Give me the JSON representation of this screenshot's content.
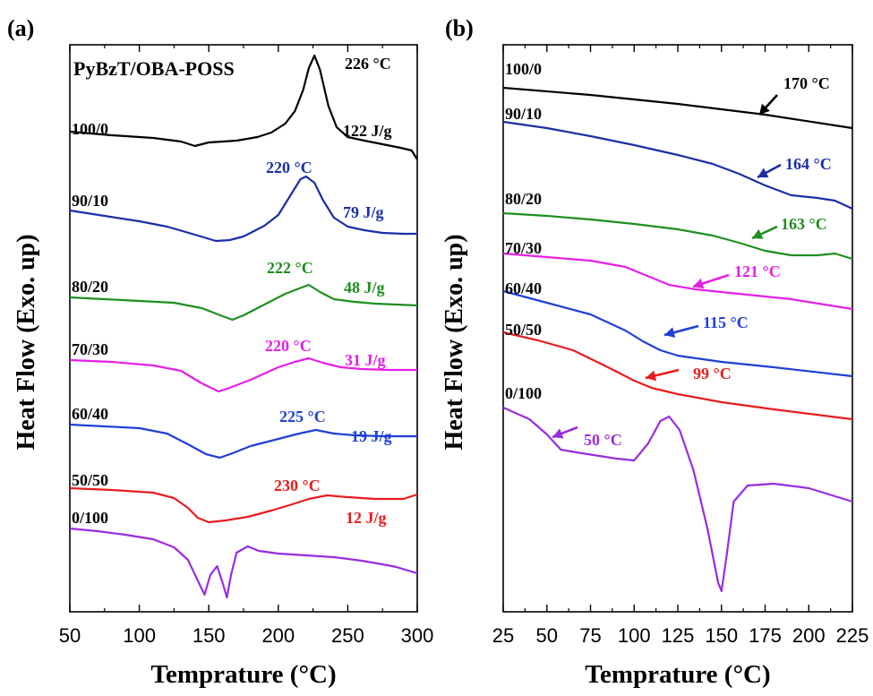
{
  "figure": {
    "panel_a_letter": "(a)",
    "panel_b_letter": "(b)"
  },
  "chart_data": [
    {
      "panel": "(a)",
      "type": "line",
      "title": "PyBzT/OBA-POSS",
      "xlabel": "Temprature (°C)",
      "ylabel": "Heat Flow (Exo. up)",
      "xlim": [
        50,
        300
      ],
      "xticks": [
        "50",
        "100",
        "150",
        "200",
        "250",
        "300"
      ],
      "grid": false,
      "series": [
        {
          "name": "100/0",
          "color": "#000000",
          "temp_label": "226 °C",
          "enthalpy_label": "122 J/g",
          "x": [
            50,
            80,
            110,
            130,
            140,
            150,
            170,
            185,
            195,
            205,
            212,
            218,
            222,
            226,
            230,
            236,
            242,
            250,
            262,
            275,
            288,
            296,
            300
          ],
          "y": [
            147,
            151,
            154,
            158,
            163,
            159,
            157,
            153,
            148,
            138,
            124,
            100,
            76,
            62,
            78,
            118,
            142,
            153,
            157,
            161,
            165,
            168,
            178
          ]
        },
        {
          "name": "90/10",
          "color": "#1c2ea8",
          "temp_label": "220 °C",
          "enthalpy_label": "79 J/g",
          "x": [
            50,
            75,
            100,
            120,
            140,
            155,
            165,
            175,
            190,
            200,
            210,
            216,
            220,
            226,
            232,
            240,
            250,
            262,
            275,
            290,
            300
          ],
          "y": [
            235,
            241,
            247,
            253,
            262,
            269,
            268,
            264,
            252,
            240,
            215,
            200,
            197,
            204,
            223,
            243,
            253,
            257,
            260,
            261,
            261
          ]
        },
        {
          "name": "80/20",
          "color": "#1f8e1f",
          "temp_label": "222 °C",
          "enthalpy_label": "48 J/g",
          "x": [
            50,
            75,
            100,
            125,
            145,
            160,
            167,
            175,
            190,
            205,
            215,
            222,
            230,
            240,
            255,
            270,
            285,
            300
          ],
          "y": [
            332,
            334,
            336,
            338,
            344,
            353,
            357,
            352,
            340,
            328,
            322,
            318,
            326,
            334,
            337,
            339,
            340,
            341
          ]
        },
        {
          "name": "70/30",
          "color": "#e61fe6",
          "temp_label": "220 °C",
          "enthalpy_label": "31 J/g",
          "x": [
            50,
            80,
            110,
            130,
            145,
            157,
            165,
            180,
            200,
            212,
            222,
            232,
            245,
            260,
            280,
            300
          ],
          "y": [
            402,
            404,
            408,
            414,
            428,
            437,
            433,
            424,
            410,
            404,
            400,
            405,
            410,
            412,
            413,
            413
          ]
        },
        {
          "name": "60/40",
          "color": "#1f3fd6",
          "temp_label": "225 °C",
          "enthalpy_label": "19 J/g",
          "x": [
            50,
            75,
            100,
            120,
            135,
            148,
            158,
            167,
            180,
            200,
            215,
            227,
            240,
            255,
            275,
            300
          ],
          "y": [
            474,
            476,
            478,
            484,
            496,
            507,
            511,
            506,
            498,
            490,
            484,
            480,
            484,
            486,
            487,
            487
          ]
        },
        {
          "name": "50/50",
          "color": "#e81c1c",
          "temp_label": "230 °C",
          "enthalpy_label": "12 J/g",
          "x": [
            50,
            80,
            110,
            125,
            135,
            142,
            150,
            162,
            178,
            195,
            210,
            222,
            235,
            250,
            270,
            290,
            300
          ],
          "y": [
            545,
            547,
            550,
            556,
            567,
            578,
            583,
            581,
            577,
            570,
            563,
            557,
            553,
            555,
            557,
            557,
            552
          ]
        },
        {
          "name": "0/100",
          "color": "#9a2ce0",
          "temp_label": "",
          "enthalpy_label": "",
          "x": [
            50,
            70,
            90,
            110,
            125,
            135,
            142,
            147,
            151,
            156,
            160,
            163,
            166,
            170,
            178,
            186,
            200,
            220,
            240,
            260,
            275,
            285,
            300
          ],
          "y": [
            590,
            593,
            597,
            602,
            611,
            625,
            648,
            664,
            642,
            632,
            651,
            667,
            642,
            617,
            610,
            615,
            618,
            620,
            622,
            626,
            630,
            633,
            640
          ]
        }
      ]
    },
    {
      "panel": "(b)",
      "type": "line",
      "title": "",
      "xlabel": "Temprature (°C)",
      "ylabel": "Heat Flow (Exo. up)",
      "xlim": [
        25,
        225
      ],
      "xticks": [
        "25",
        "50",
        "75",
        "100",
        "125",
        "150",
        "175",
        "200",
        "225"
      ],
      "grid": false,
      "series": [
        {
          "name": "100/0",
          "color": "#000000",
          "tg_label": "170 °C",
          "x": [
            25,
            75,
            125,
            175,
            225
          ],
          "y": [
            98,
            106,
            116,
            128,
            143
          ]
        },
        {
          "name": "90/10",
          "color": "#1c2ea8",
          "tg_label": "164 °C",
          "x": [
            25,
            50,
            75,
            100,
            125,
            145,
            160,
            175,
            190,
            205,
            215,
            225
          ],
          "y": [
            136,
            143,
            152,
            162,
            173,
            183,
            194,
            207,
            218,
            221,
            224,
            233
          ]
        },
        {
          "name": "80/20",
          "color": "#1f8e1f",
          "tg_label": "163 °C",
          "x": [
            25,
            50,
            75,
            100,
            125,
            145,
            160,
            175,
            190,
            205,
            215,
            225
          ],
          "y": [
            238,
            241,
            245,
            250,
            256,
            263,
            271,
            280,
            285,
            285,
            283,
            289
          ]
        },
        {
          "name": "70/30",
          "color": "#e61fe6",
          "tg_label": "121 °C",
          "x": [
            25,
            50,
            75,
            95,
            110,
            120,
            135,
            160,
            190,
            225
          ],
          "y": [
            283,
            287,
            291,
            298,
            310,
            318,
            323,
            328,
            334,
            345
          ]
        },
        {
          "name": "60/40",
          "color": "#1f3fd6",
          "tg_label": "115 °C",
          "x": [
            25,
            50,
            75,
            95,
            105,
            115,
            125,
            150,
            180,
            225
          ],
          "y": [
            325,
            338,
            351,
            369,
            381,
            391,
            397,
            404,
            410,
            420
          ]
        },
        {
          "name": "50/50",
          "color": "#e81c1c",
          "tg_label": "99 °C",
          "x": [
            25,
            45,
            65,
            85,
            100,
            110,
            125,
            150,
            180,
            225
          ],
          "y": [
            371,
            380,
            391,
            410,
            425,
            433,
            440,
            449,
            457,
            468
          ]
        },
        {
          "name": "0/100",
          "color": "#9a2ce0",
          "tg_label": "50 °C",
          "x": [
            25,
            40,
            50,
            58,
            70,
            90,
            100,
            108,
            115,
            120,
            126,
            134,
            142,
            148,
            150,
            153,
            157,
            165,
            180,
            200,
            225
          ],
          "y": [
            455,
            468,
            485,
            502,
            506,
            512,
            514,
            495,
            470,
            465,
            480,
            525,
            590,
            650,
            660,
            620,
            560,
            542,
            540,
            545,
            560
          ]
        }
      ]
    }
  ]
}
